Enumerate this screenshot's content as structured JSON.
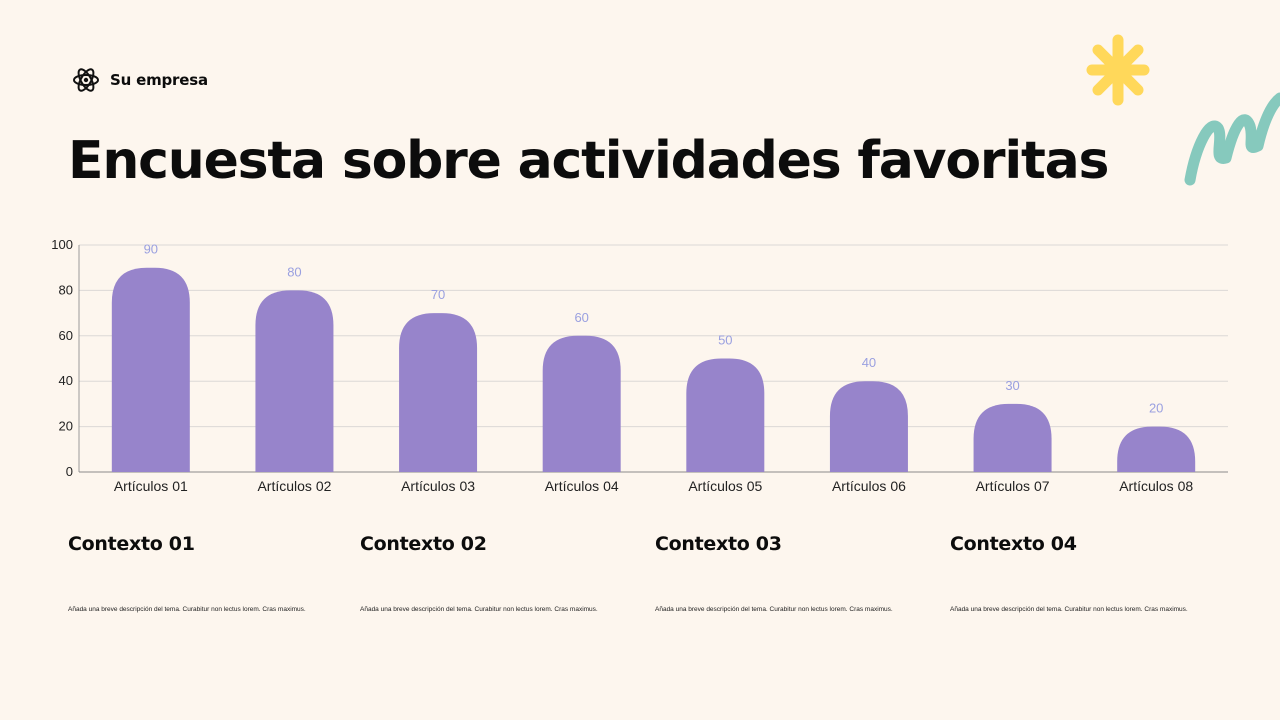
{
  "brand": {
    "icon": "atom-icon",
    "name": "Su empresa"
  },
  "title": "Encuesta sobre actividades favoritas",
  "colors": {
    "background": "#fdf6ee",
    "bar": "#9784cb",
    "data_label": "#9aa0e0",
    "star": "#ffd85a",
    "squiggle": "#86c9bd"
  },
  "chart_data": {
    "type": "bar",
    "categories": [
      "Artículos 01",
      "Artículos 02",
      "Artículos 03",
      "Artículos 04",
      "Artículos 05",
      "Artículos 06",
      "Artículos 07",
      "Artículos 08"
    ],
    "values": [
      90,
      80,
      70,
      60,
      50,
      40,
      30,
      20
    ],
    "data_labels": [
      "90",
      "80",
      "70",
      "60",
      "50",
      "40",
      "30",
      "20"
    ],
    "ylim": [
      0,
      100
    ],
    "yticks": [
      0,
      20,
      40,
      60,
      80,
      100
    ],
    "grid": true,
    "bar_shape": "rounded-top",
    "title": "",
    "xlabel": "",
    "ylabel": ""
  },
  "contexts": [
    {
      "title": "Contexto 01",
      "text": "Añada una breve descripción del tema. Curabitur non lectus lorem. Cras maximus."
    },
    {
      "title": "Contexto 02",
      "text": "Añada una breve descripción del tema. Curabitur non lectus lorem. Cras maximus."
    },
    {
      "title": "Contexto 03",
      "text": "Añada una breve descripción del tema. Curabitur non lectus lorem. Cras maximus."
    },
    {
      "title": "Contexto 04",
      "text": "Añada una breve descripción del tema. Curabitur non lectus lorem. Cras maximus."
    }
  ]
}
